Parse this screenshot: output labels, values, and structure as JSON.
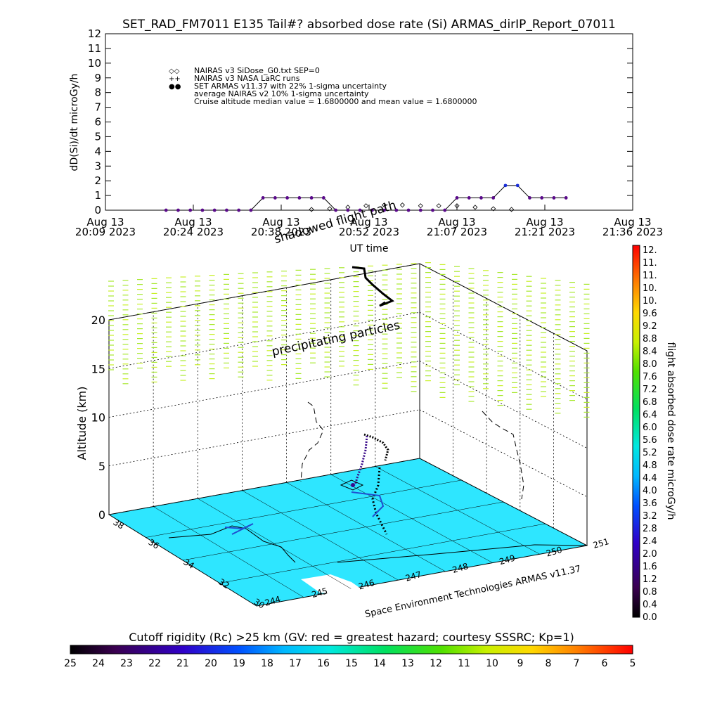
{
  "title": "SET_RAD_FM7011  E135 Tail#? absorbed dose rate (Si) ARMAS_dirIP_Report_07011",
  "top_chart": {
    "ylabel": "dD(Si)/dt microGy/h",
    "ylim": [
      0,
      12
    ],
    "yticks": [
      "0",
      "1",
      "2",
      "3",
      "4",
      "5",
      "6",
      "7",
      "8",
      "9",
      "10",
      "11",
      "12"
    ],
    "xticks": [
      {
        "month": "Aug 13",
        "time": "20:09 2023"
      },
      {
        "month": "Aug 13",
        "time": "20:24 2023"
      },
      {
        "month": "Aug 13",
        "time": "20:38 2023"
      },
      {
        "month": "Aug 13",
        "time": "20:52 2023"
      },
      {
        "month": "Aug 13",
        "time": "21:07 2023"
      },
      {
        "month": "Aug 13",
        "time": "21:21 2023"
      },
      {
        "month": "Aug 13",
        "time": "21:36 2023"
      }
    ],
    "xlabel": "UT time",
    "legend": [
      {
        "marker": "◇◇",
        "text": "NAIRAS v3 SiDose_G0.txt SEP=0"
      },
      {
        "marker": "++",
        "text": "NAIRAS v3 NASA LaRC runs"
      },
      {
        "marker": "●●",
        "text": "SET ARMAS v11.37 with 22% 1-sigma uncertainty"
      },
      {
        "marker": "",
        "text": "average NAIRAS v2 10% 1-sigma uncertainty"
      },
      {
        "marker": "",
        "text": "Cruise altitude median value = 1.6800000 and mean value = 1.6800000"
      }
    ]
  },
  "chart_data": [
    {
      "type": "line",
      "title": "SET_RAD_FM7011  E135 Tail#? absorbed dose rate (Si) ARMAS_dirIP_Report_07011",
      "xlabel": "UT time",
      "ylabel": "dD(Si)/dt microGy/h",
      "ylim": [
        0,
        12
      ],
      "x_axis": [
        "20:09",
        "21:36"
      ],
      "series": [
        {
          "name": "SET ARMAS v11.37 with 22% 1-sigma uncertainty",
          "x": [
            "20:19",
            "20:21",
            "20:23",
            "20:25",
            "20:27",
            "20:29",
            "20:31",
            "20:33",
            "20:35",
            "20:37",
            "20:39",
            "20:41",
            "20:43",
            "20:45",
            "20:47",
            "20:49",
            "20:51",
            "20:53",
            "20:55",
            "20:57",
            "20:59",
            "21:01",
            "21:03",
            "21:05",
            "21:07",
            "21:09",
            "21:11",
            "21:13",
            "21:15",
            "21:17",
            "21:19",
            "21:21",
            "21:23",
            "21:25"
          ],
          "values": [
            0,
            0,
            0,
            0,
            0,
            0,
            0,
            0,
            0.84,
            0.84,
            0.84,
            0.84,
            0.84,
            0.84,
            0,
            0,
            0,
            0,
            0,
            0,
            0,
            0,
            0,
            0,
            0.84,
            0.84,
            0.84,
            0.84,
            1.68,
            1.68,
            0.84,
            0.84,
            0.84,
            0.84
          ]
        },
        {
          "name": "NAIRAS v3 SiDose_G0.txt SEP=0",
          "x": [
            "20:43",
            "20:46",
            "20:49",
            "20:52",
            "20:55",
            "20:58",
            "21:01",
            "21:04",
            "21:07",
            "21:10",
            "21:13",
            "21:16"
          ],
          "values": [
            0.05,
            0.1,
            0.2,
            0.3,
            0.35,
            0.35,
            0.3,
            0.3,
            0.3,
            0.2,
            0.1,
            0.05
          ]
        }
      ]
    },
    {
      "type": "scatter",
      "title": "",
      "xlabel": "",
      "ylabel": "Altitude (km)",
      "zlim": [
        0,
        20
      ],
      "zticks": [
        "0",
        "5",
        "10",
        "15",
        "20"
      ],
      "lat_ticks": [
        "38",
        "36",
        "34",
        "32",
        "30"
      ],
      "lon_ticks": [
        "244",
        "245",
        "246",
        "247",
        "248",
        "249",
        "250",
        "251"
      ],
      "series": [
        {
          "name": "flight path",
          "lon": [
            245.6,
            245.7,
            245.8,
            245.9,
            246.0,
            246.1,
            246.2
          ],
          "lat": [
            33.0,
            33.3,
            33.6,
            33.9,
            34.2,
            34.5,
            34.8
          ],
          "alt_km": [
            0.5,
            3,
            6,
            9,
            9.5,
            9.5,
            9.5
          ]
        }
      ]
    }
  ],
  "map_annotations": {
    "shadowed_flight_path": "shadowed flight path",
    "precipitating_particles": "precipitating particles",
    "credit": "Space Environment Technologies ARMAS v11.37",
    "altitude_label": "Altitude (km)"
  },
  "right_colorbar": {
    "label": "flight absorbed dose rate microGy/h",
    "ticks": [
      "12.",
      "11.",
      "11.",
      "10.",
      "10.",
      "9.6",
      "9.2",
      "8.8",
      "8.4",
      "8.0",
      "7.6",
      "7.2",
      "6.8",
      "6.4",
      "6.0",
      "5.6",
      "5.2",
      "4.8",
      "4.4",
      "4.0",
      "3.6",
      "3.2",
      "2.8",
      "2.4",
      "2.0",
      "1.6",
      "1.2",
      "0.8",
      "0.4",
      "0.0"
    ]
  },
  "bottom_colorbar": {
    "label": "Cutoff rigidity (Rc) >25 km (GV: red = greatest hazard; courtesy SSSRC; Kp=1)",
    "ticks": [
      "25",
      "24",
      "23",
      "22",
      "21",
      "20",
      "19",
      "18",
      "17",
      "16",
      "15",
      "14",
      "13",
      "12",
      "11",
      "10",
      "9",
      "8",
      "7",
      "6",
      "5"
    ]
  },
  "colors": {
    "armas_points": "#5a0a8a",
    "armas_high": "#1a2ed8",
    "ground": "#2ee6ff",
    "particle_low": "#a8e830",
    "particle_high": "#c8f028"
  }
}
